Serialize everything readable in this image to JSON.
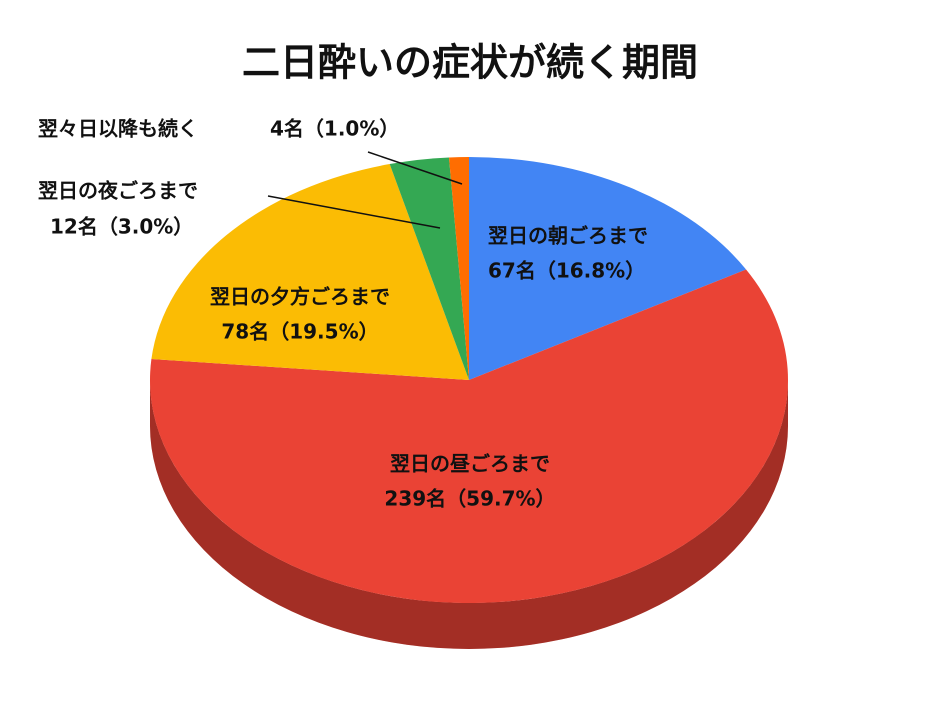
{
  "chart_data": {
    "type": "pie3d",
    "title": "二日酔いの症状が続く期間",
    "categories": [
      "翌日の朝ごろまで",
      "翌日の昼ごろまで",
      "翌日の夕方ごろまで",
      "翌日の夜ごろまで",
      "翌々日以降も続く"
    ],
    "values": [
      67,
      239,
      78,
      12,
      4
    ],
    "value_labels": [
      "67名（16.8%）",
      "239名（59.7%）",
      "78名（19.5%）",
      "12名（3.0%）",
      "4名（1.0%）"
    ],
    "colors": [
      "#4285f4",
      "#ea4335",
      "#fbbc04",
      "#34a853",
      "#ff6d01"
    ]
  }
}
